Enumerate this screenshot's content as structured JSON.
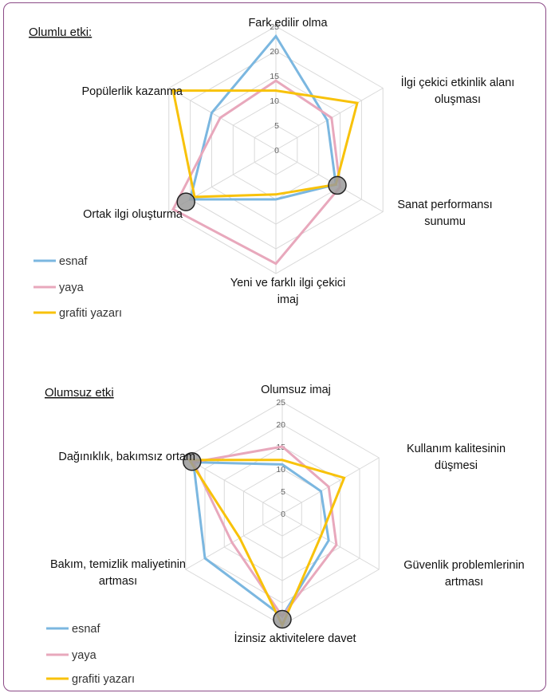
{
  "chart_data": [
    {
      "type": "radar",
      "title": "Olumlu etki:",
      "axes": [
        "Fark edilir olma",
        "İlgi çekici etkinlik alanı oluşması",
        "Sanat performansı sunumu",
        "Yeni ve farklı ilgi çekici imaj",
        "Ortak ilgi oluşturma",
        "Popülerlik kazanma"
      ],
      "axis_labels": [
        [
          "Fark edilir olma"
        ],
        [
          "İlgi çekici etkinlik alanı",
          "oluşması"
        ],
        [
          "Sanat performansı",
          "sunumu"
        ],
        [
          "Yeni ve farklı ilgi çekici",
          "imaj"
        ],
        [
          "Ortak ilgi oluşturma"
        ],
        [
          "Popülerlik kazanma"
        ]
      ],
      "ticks": [
        "0",
        "5",
        "10",
        "15",
        "20",
        "25"
      ],
      "rlim": [
        0,
        25
      ],
      "series": [
        {
          "name": "esnaf",
          "color": "#7bb7e0",
          "values": [
            23,
            12,
            14,
            10,
            20,
            15
          ]
        },
        {
          "name": "yaya",
          "color": "#e8a8bc",
          "values": [
            14,
            13,
            15,
            23,
            24,
            13
          ]
        },
        {
          "name": "grafiti yazarı",
          "color": "#f8c20a",
          "values": [
            12,
            19,
            14,
            9,
            19,
            24
          ]
        }
      ],
      "highlighted_axes": [
        2,
        4
      ],
      "legend_position": "bottom-left"
    },
    {
      "type": "radar",
      "title": "Olumsuz etki",
      "axes": [
        "Olumsuz imaj",
        "Kullanım kalitesinin düşmesi",
        "Güvenlik problemlerinin artması",
        "İzinsiz aktivitelere davet",
        "Bakım, temizlik maliyetinin artması",
        "Dağınıklık, bakımsız ortam"
      ],
      "axis_labels": [
        [
          "Olumsuz imaj"
        ],
        [
          "Kullanım kalitesinin",
          "düşmesi"
        ],
        [
          "Güvenlik problemlerinin",
          "artması"
        ],
        [
          "İzinsiz aktivitelere davet"
        ],
        [
          "Bakım, temizlik maliyetinin",
          "artması"
        ],
        [
          "Dağınıklık, bakımsız ortam"
        ]
      ],
      "ticks": [
        "0",
        "5",
        "10",
        "15",
        "20",
        "25"
      ],
      "rlim": [
        0,
        25
      ],
      "series": [
        {
          "name": "esnaf",
          "color": "#7bb7e0",
          "values": [
            11,
            10,
            12,
            23,
            20,
            23
          ]
        },
        {
          "name": "yaya",
          "color": "#e8a8bc",
          "values": [
            15,
            12,
            14,
            23,
            13,
            23
          ]
        },
        {
          "name": "grafiti yazarı",
          "color": "#f8c20a",
          "values": [
            12,
            16,
            10,
            25,
            11,
            24
          ]
        }
      ],
      "highlighted_axes": [
        3,
        5
      ],
      "legend_position": "bottom-left"
    }
  ]
}
